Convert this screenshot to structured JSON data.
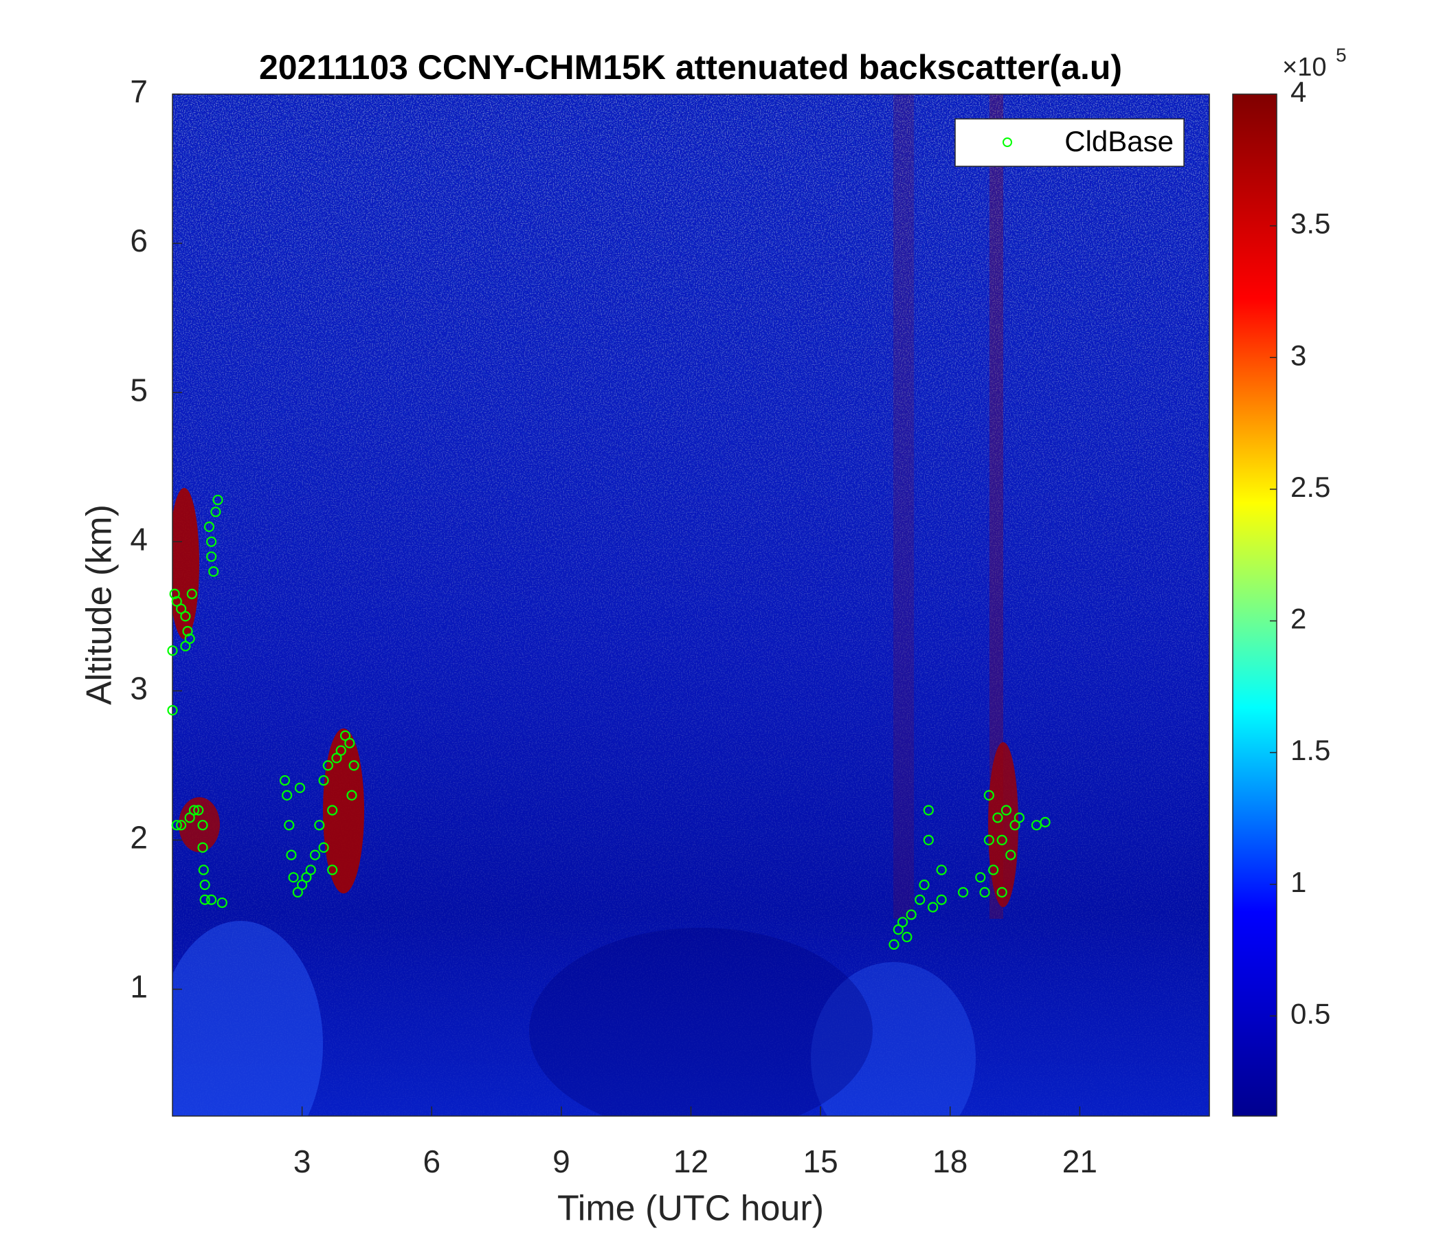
{
  "chart_data": {
    "type": "scatter",
    "title": "20211103 CCNY-CHM15K attenuated backscatter(a.u)",
    "x_label": "Time (UTC hour)",
    "y_label": "Altitude (km)",
    "xlim": [
      0,
      24
    ],
    "xticks": [
      3,
      6,
      9,
      12,
      15,
      18,
      21
    ],
    "ylim": [
      0.15,
      7
    ],
    "yticks": [
      1,
      2,
      3,
      4,
      5,
      6,
      7
    ],
    "legend_position": "upper-right",
    "series": [
      {
        "name": "CldBase",
        "color": "#00ff00",
        "x": [
          0.05,
          0.1,
          0.2,
          0.3,
          0.35,
          0.4,
          0.3,
          0.0,
          0.0,
          0.45,
          0.85,
          0.9,
          0.95,
          1.0,
          1.05,
          0.9,
          0.1,
          0.2,
          0.4,
          0.5,
          0.6,
          0.7,
          0.7,
          0.72,
          0.75,
          0.75,
          0.9,
          1.15,
          2.6,
          2.65,
          2.7,
          2.75,
          2.8,
          2.9,
          3.0,
          3.1,
          3.2,
          3.3,
          2.95,
          3.4,
          3.5,
          3.6,
          3.7,
          3.8,
          3.9,
          4.0,
          4.1,
          4.2,
          4.15,
          3.7,
          3.5,
          16.7,
          16.8,
          16.9,
          17.1,
          17.3,
          17.4,
          17.5,
          17.5,
          17.6,
          17.8,
          17.8,
          17.0,
          18.3,
          18.7,
          18.8,
          18.9,
          18.9,
          19.0,
          19.1,
          19.2,
          19.3,
          19.4,
          19.5,
          19.6,
          19.2,
          20.0,
          20.2
        ],
        "values": [
          3.65,
          3.6,
          3.55,
          3.5,
          3.4,
          3.35,
          3.3,
          3.27,
          2.87,
          3.65,
          4.1,
          3.9,
          3.8,
          4.2,
          4.28,
          4.0,
          2.1,
          2.1,
          2.15,
          2.2,
          2.2,
          2.1,
          1.95,
          1.8,
          1.7,
          1.6,
          1.6,
          1.58,
          2.4,
          2.3,
          2.1,
          1.9,
          1.75,
          1.65,
          1.7,
          1.75,
          1.8,
          1.9,
          2.35,
          2.1,
          2.4,
          2.5,
          2.2,
          2.55,
          2.6,
          2.7,
          2.65,
          2.5,
          2.3,
          1.8,
          1.95,
          1.3,
          1.4,
          1.45,
          1.5,
          1.6,
          1.7,
          2.0,
          2.2,
          1.55,
          1.8,
          1.6,
          1.35,
          1.65,
          1.75,
          1.65,
          2.3,
          2.0,
          1.8,
          2.15,
          1.65,
          2.2,
          1.9,
          2.1,
          2.15,
          2.0,
          2.1,
          2.12
        ]
      }
    ],
    "colorbar": {
      "clim": [
        0.12,
        4
      ],
      "ticks": [
        0.5,
        1,
        1.5,
        2,
        2.5,
        3,
        3.5,
        4
      ],
      "exponent_base": "×10",
      "exponent_power": "5",
      "colormap": [
        "#00008f",
        "#0000ff",
        "#00ffff",
        "#ffff00",
        "#ff0000",
        "#800000"
      ]
    }
  }
}
